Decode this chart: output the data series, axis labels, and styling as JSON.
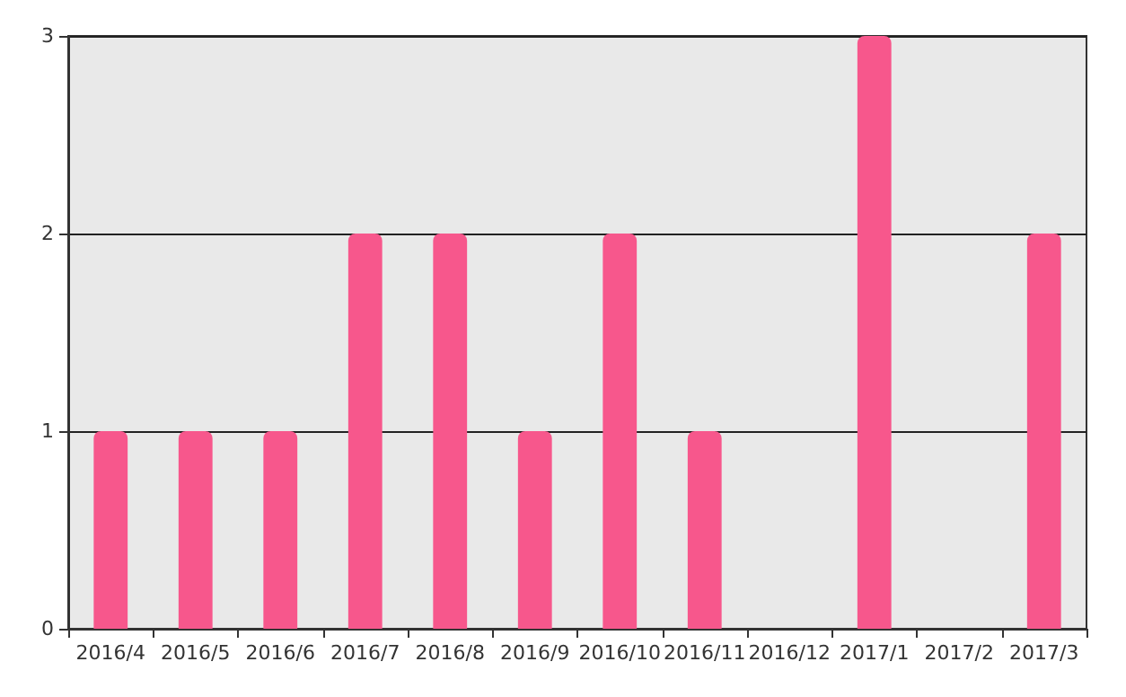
{
  "chart_data": {
    "type": "bar",
    "categories": [
      "2016/4",
      "2016/5",
      "2016/6",
      "2016/7",
      "2016/8",
      "2016/9",
      "2016/10",
      "2016/11",
      "2016/12",
      "2017/1",
      "2017/2",
      "2017/3"
    ],
    "values": [
      1,
      1,
      1,
      2,
      2,
      1,
      2,
      1,
      0,
      3,
      0,
      2
    ],
    "color": "#f7578c",
    "ylim": [
      0,
      3
    ],
    "yticks": [
      0,
      1,
      2,
      3
    ],
    "grid": "y"
  }
}
